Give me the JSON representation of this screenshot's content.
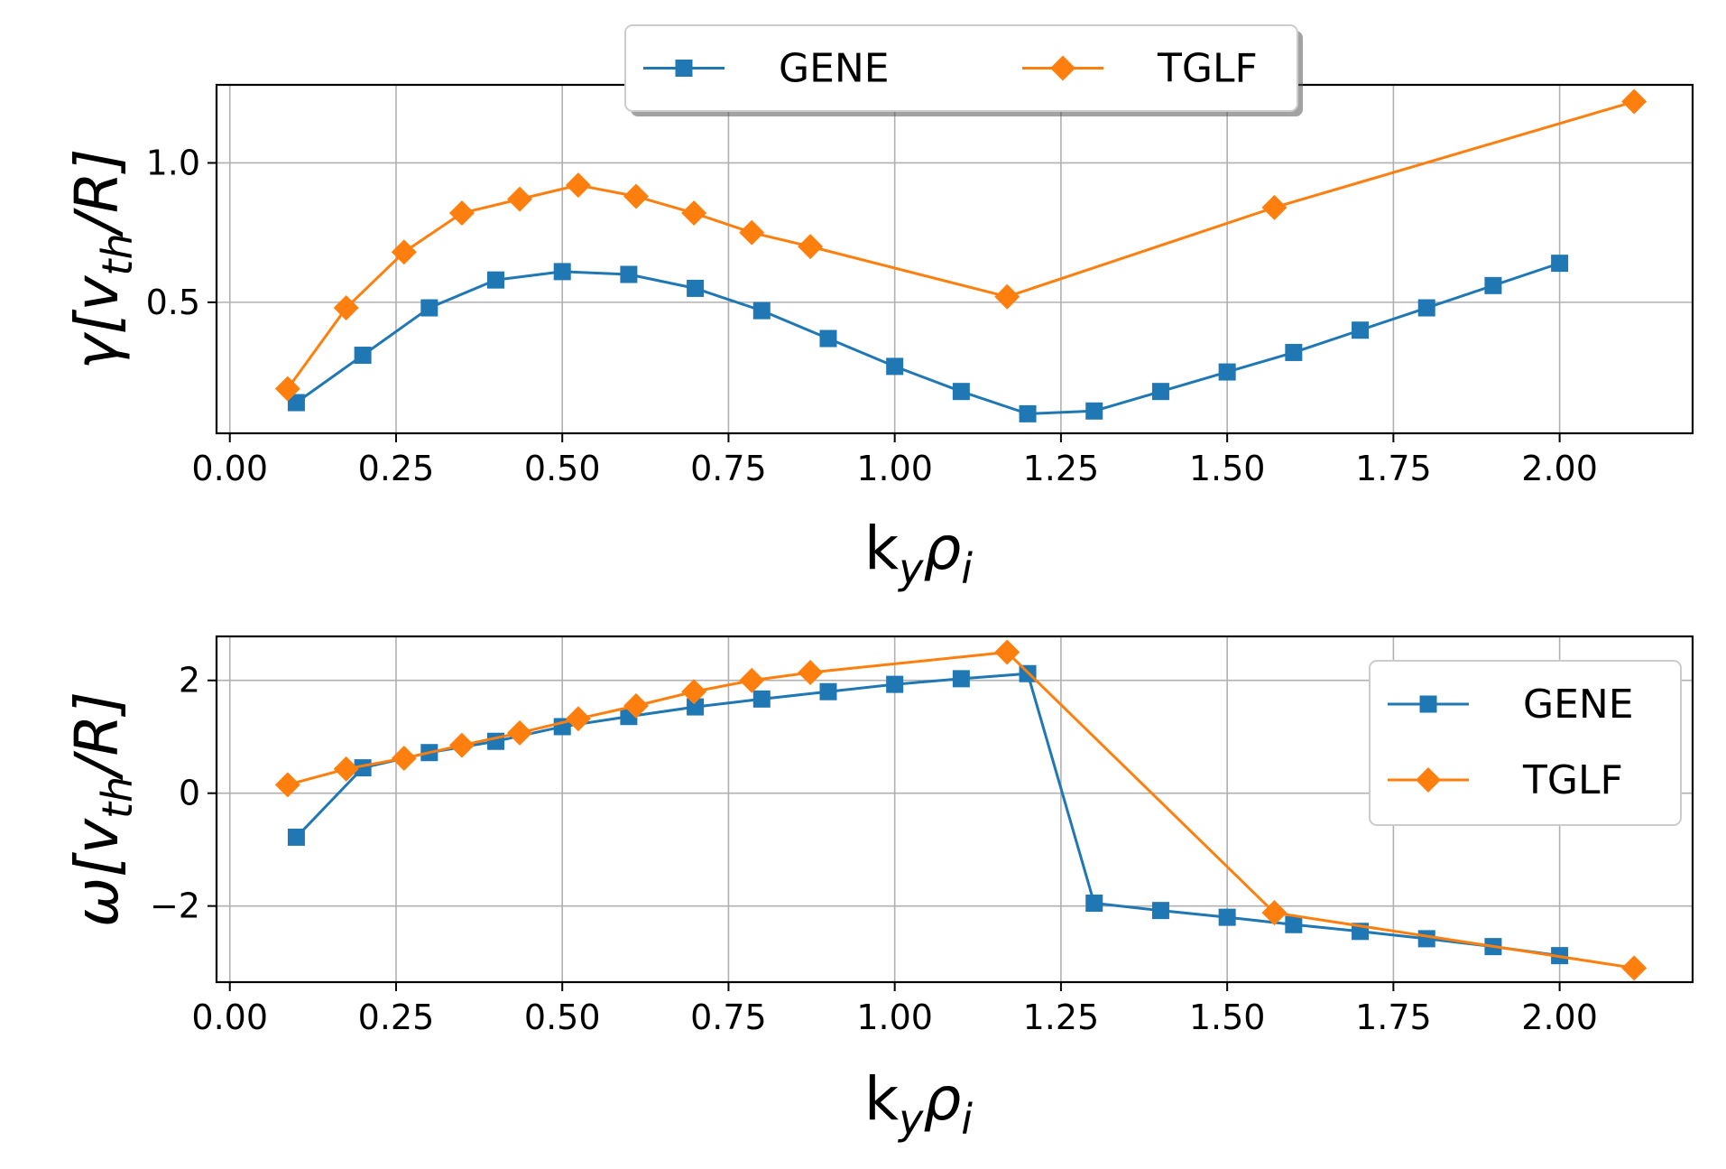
{
  "chart_data": [
    {
      "type": "line",
      "panel": "top",
      "ylabel": {
        "main": "γ[v",
        "sub": "th",
        "tail": "/R]"
      },
      "xlabel": {
        "main": "k",
        "sub1": "y",
        "mid": "ρ",
        "sub2": "i"
      },
      "xlim": [
        -0.02,
        2.2
      ],
      "ylim": [
        0.03,
        1.28
      ],
      "xticks": [
        0.0,
        0.25,
        0.5,
        0.75,
        1.0,
        1.25,
        1.5,
        1.75,
        2.0
      ],
      "xtick_labels": [
        "0.00",
        "0.25",
        "0.50",
        "0.75",
        "1.00",
        "1.25",
        "1.50",
        "1.75",
        "2.00"
      ],
      "yticks": [
        0.5,
        1.0
      ],
      "ytick_labels": [
        "0.5",
        "1.0"
      ],
      "grid": true,
      "legend": {
        "placement": "top-center",
        "layout": "horizontal"
      },
      "series": [
        {
          "name": "GENE",
          "color": "#1f77b4",
          "marker": "square",
          "x": [
            0.1,
            0.2,
            0.3,
            0.4,
            0.5,
            0.6,
            0.7,
            0.8,
            0.9,
            1.0,
            1.1,
            1.2,
            1.3,
            1.4,
            1.5,
            1.6,
            1.7,
            1.8,
            1.9,
            2.0
          ],
          "y": [
            0.14,
            0.31,
            0.48,
            0.58,
            0.61,
            0.6,
            0.55,
            0.47,
            0.37,
            0.27,
            0.18,
            0.1,
            0.11,
            0.18,
            0.25,
            0.32,
            0.4,
            0.48,
            0.56,
            0.64
          ]
        },
        {
          "name": "TGLF",
          "color": "#ff7f0e",
          "marker": "diamond",
          "x": [
            0.087,
            0.175,
            0.262,
            0.349,
            0.436,
            0.524,
            0.611,
            0.698,
            0.785,
            0.873,
            1.169,
            1.571,
            2.112
          ],
          "y": [
            0.19,
            0.48,
            0.68,
            0.82,
            0.87,
            0.92,
            0.88,
            0.82,
            0.75,
            0.7,
            0.52,
            0.84,
            1.22
          ]
        }
      ]
    },
    {
      "type": "line",
      "panel": "bottom",
      "ylabel": {
        "main": "ω[v",
        "sub": "th",
        "tail": "/R]"
      },
      "xlabel": {
        "main": "k",
        "sub1": "y",
        "mid": "ρ",
        "sub2": "i"
      },
      "xlim": [
        -0.02,
        2.2
      ],
      "ylim": [
        -3.35,
        2.78
      ],
      "xticks": [
        0.0,
        0.25,
        0.5,
        0.75,
        1.0,
        1.25,
        1.5,
        1.75,
        2.0
      ],
      "xtick_labels": [
        "0.00",
        "0.25",
        "0.50",
        "0.75",
        "1.00",
        "1.25",
        "1.50",
        "1.75",
        "2.00"
      ],
      "yticks": [
        -2,
        0,
        2
      ],
      "ytick_labels": [
        "−2",
        "0",
        "2"
      ],
      "grid": true,
      "legend": {
        "placement": "right",
        "layout": "vertical"
      },
      "series": [
        {
          "name": "GENE",
          "color": "#1f77b4",
          "marker": "square",
          "x": [
            0.1,
            0.2,
            0.3,
            0.4,
            0.5,
            0.6,
            0.7,
            0.8,
            0.9,
            1.0,
            1.1,
            1.2,
            1.3,
            1.4,
            1.5,
            1.6,
            1.7,
            1.8,
            1.9,
            2.0
          ],
          "y": [
            -0.78,
            0.45,
            0.72,
            0.92,
            1.18,
            1.36,
            1.53,
            1.67,
            1.8,
            1.93,
            2.03,
            2.12,
            -1.95,
            -2.08,
            -2.2,
            -2.33,
            -2.45,
            -2.58,
            -2.72,
            -2.88
          ]
        },
        {
          "name": "TGLF",
          "color": "#ff7f0e",
          "marker": "diamond",
          "x": [
            0.087,
            0.175,
            0.262,
            0.349,
            0.436,
            0.524,
            0.611,
            0.698,
            0.785,
            0.873,
            1.169,
            1.571,
            2.112
          ],
          "y": [
            0.15,
            0.43,
            0.62,
            0.85,
            1.07,
            1.32,
            1.55,
            1.8,
            2.0,
            2.14,
            2.5,
            -2.12,
            -3.1
          ]
        }
      ]
    }
  ]
}
